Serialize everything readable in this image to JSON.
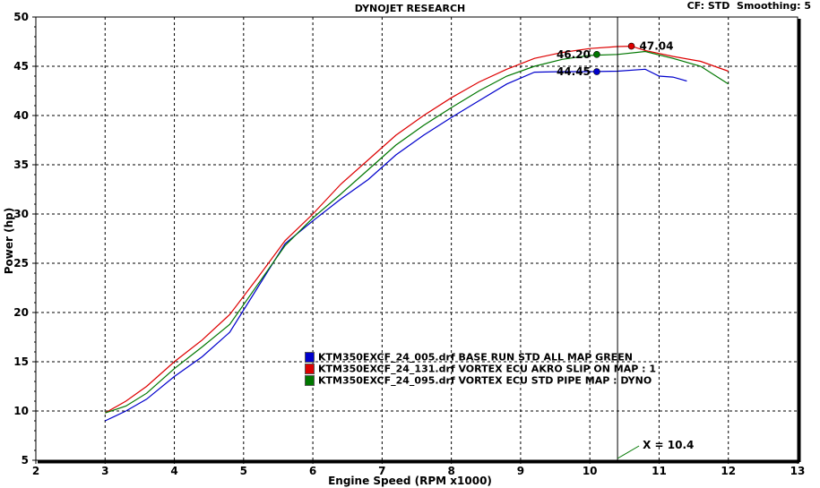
{
  "header": {
    "title": "DYNOJET RESEARCH",
    "info": "CF: STD  Smoothing: 5"
  },
  "chart_data": {
    "type": "line",
    "title": "DYNOJET RESEARCH",
    "xlabel": "Engine Speed (RPM x1000)",
    "ylabel": "Power (hp)",
    "xlim": [
      2,
      13
    ],
    "ylim": [
      5,
      50
    ],
    "xticks": [
      "2",
      "3",
      "4",
      "5",
      "6",
      "7",
      "8",
      "9",
      "10",
      "11",
      "12",
      "13"
    ],
    "yticks": [
      "5",
      "10",
      "15",
      "20",
      "25",
      "30",
      "35",
      "40",
      "45",
      "50"
    ],
    "grid": true,
    "legend_position": "center-bottom",
    "cursor": {
      "x": 10.4,
      "label": "X = 10.4"
    },
    "series": [
      {
        "name": "KTM350EXCF_24_005.drf BASE RUN STD ALL MAP GREEN",
        "color": "#0000cc",
        "x": [
          3.0,
          3.3,
          3.6,
          4.0,
          4.4,
          4.8,
          5.2,
          5.6,
          6.0,
          6.4,
          6.8,
          7.2,
          7.6,
          8.0,
          8.4,
          8.8,
          9.2,
          9.6,
          10.0,
          10.4,
          10.8,
          11.0,
          11.2,
          11.4
        ],
        "y": [
          9.0,
          10.0,
          11.2,
          13.5,
          15.5,
          18.0,
          22.5,
          27.0,
          29.3,
          31.5,
          33.5,
          36.0,
          38.0,
          39.8,
          41.5,
          43.2,
          44.4,
          44.45,
          44.45,
          44.5,
          44.7,
          44.0,
          43.9,
          43.5
        ],
        "annotation": {
          "x": 10.1,
          "y": 44.45,
          "label": "44.45"
        }
      },
      {
        "name": "KTM350EXCF_24_131.drf VORTEX ECU AKRO SLIP ON MAP : 1",
        "color": "#dd0000",
        "x": [
          3.0,
          3.3,
          3.6,
          4.0,
          4.4,
          4.8,
          5.2,
          5.6,
          6.0,
          6.4,
          6.8,
          7.2,
          7.6,
          8.0,
          8.4,
          8.8,
          9.2,
          9.6,
          10.0,
          10.4,
          10.6,
          10.8,
          11.2,
          11.6,
          12.0
        ],
        "y": [
          9.8,
          11.0,
          12.5,
          15.0,
          17.2,
          19.8,
          23.5,
          27.3,
          30.0,
          33.0,
          35.5,
          38.0,
          40.0,
          41.8,
          43.4,
          44.7,
          45.8,
          46.4,
          46.8,
          47.0,
          47.04,
          46.6,
          46.0,
          45.5,
          44.5
        ],
        "annotation": {
          "x": 10.6,
          "y": 47.04,
          "label": "47.04"
        }
      },
      {
        "name": "KTM350EXCF_24_095.drf VORTEX ECU STD PIPE MAP : DYNO",
        "color": "#007700",
        "x": [
          3.0,
          3.3,
          3.6,
          4.0,
          4.4,
          4.8,
          5.2,
          5.6,
          6.0,
          6.4,
          6.8,
          7.2,
          7.6,
          8.0,
          8.4,
          8.8,
          9.2,
          9.6,
          10.0,
          10.4,
          10.8,
          11.2,
          11.6,
          12.0
        ],
        "y": [
          9.8,
          10.5,
          11.8,
          14.3,
          16.5,
          18.8,
          22.8,
          26.8,
          29.6,
          32.0,
          34.5,
          37.0,
          39.0,
          40.8,
          42.5,
          44.0,
          45.0,
          45.7,
          46.1,
          46.2,
          46.5,
          45.8,
          45.0,
          43.2
        ],
        "annotation": {
          "x": 10.1,
          "y": 46.2,
          "label": "46.20"
        }
      }
    ]
  }
}
